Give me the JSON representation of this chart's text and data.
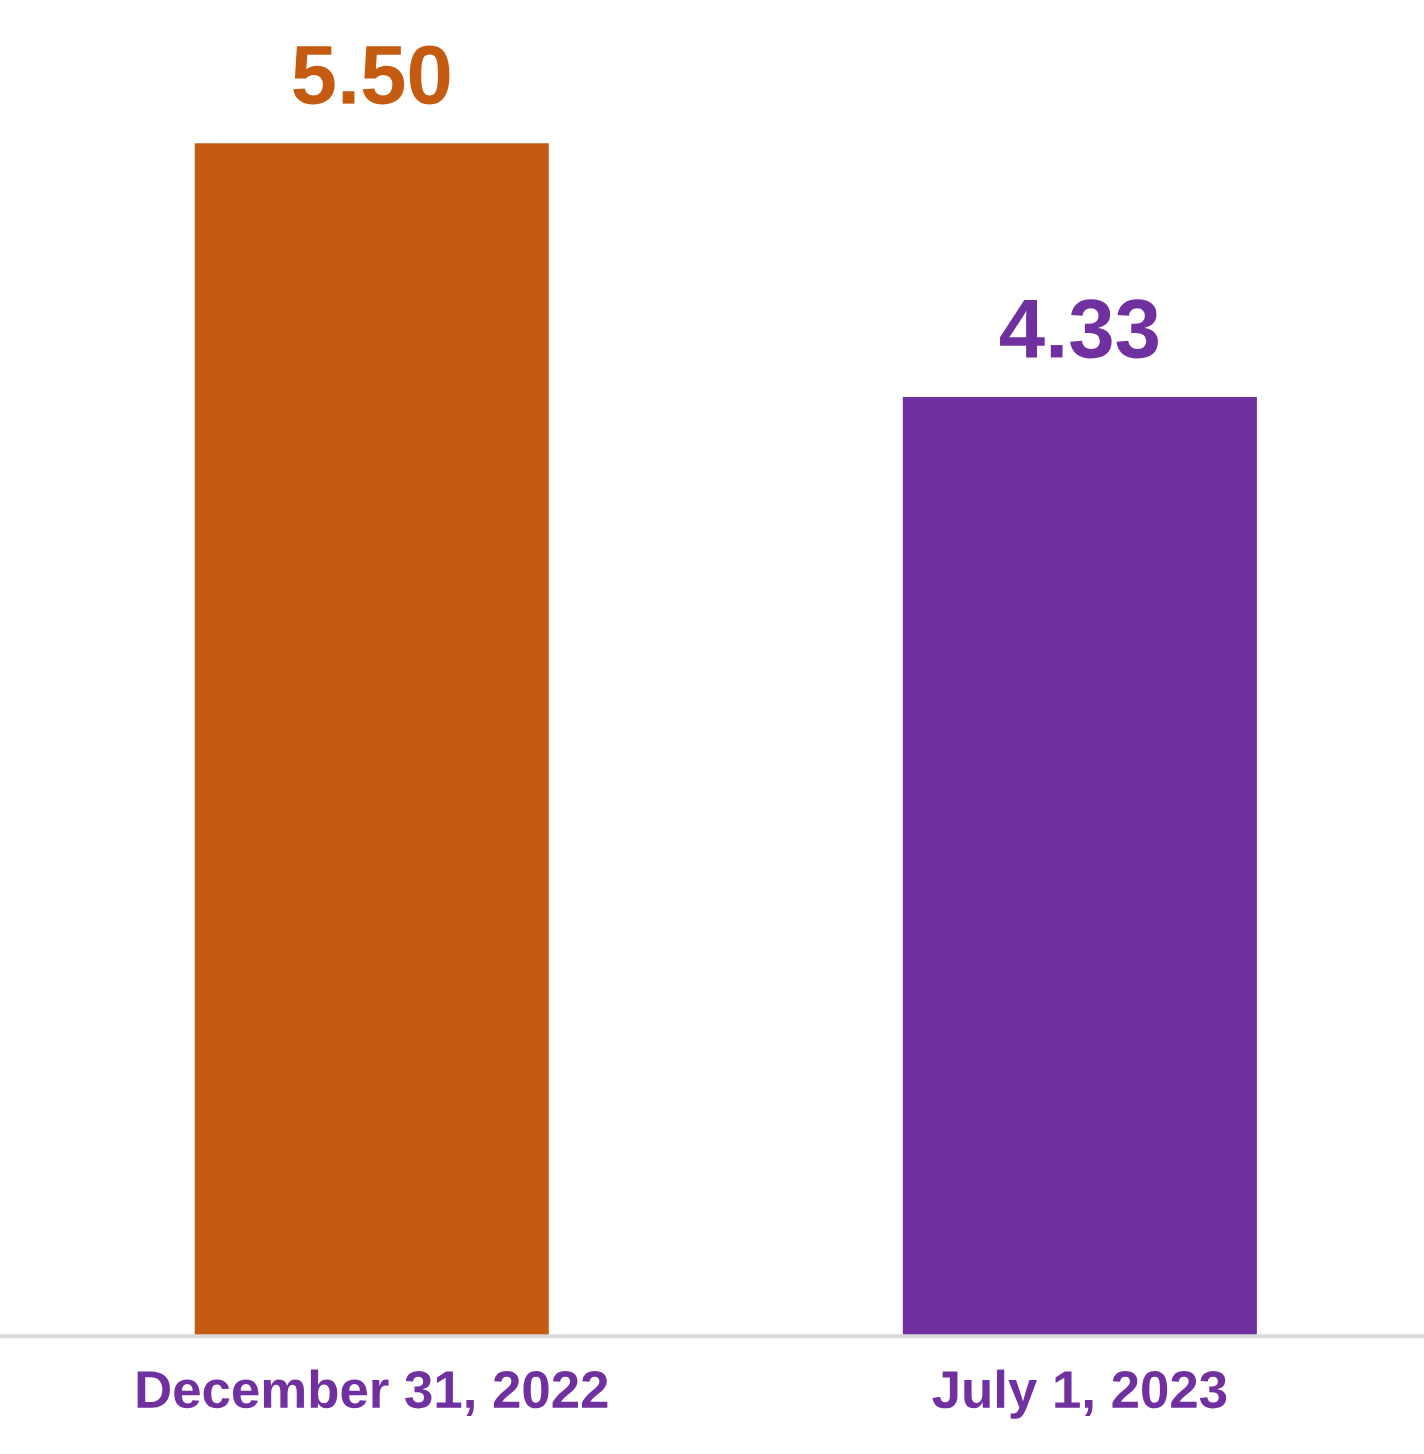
{
  "chart_data": {
    "type": "bar",
    "categories": [
      "December 31, 2022",
      "July 1, 2023"
    ],
    "values": [
      5.5,
      4.33
    ],
    "colors": [
      "#c55a11",
      "#7030a0"
    ],
    "value_labels": [
      "5.50",
      "4.33"
    ],
    "grid": false,
    "legend": false
  }
}
